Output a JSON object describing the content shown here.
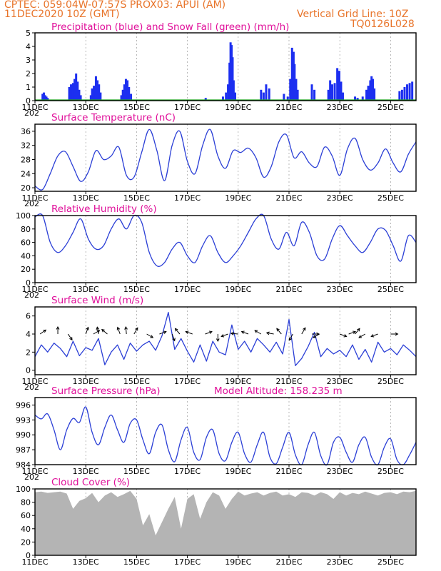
{
  "header": {
    "line1": "CPTEC:   059:04W-07:57S   PROX03: APUI (AM)",
    "line2_left": "11DEC2020 10Z (GMT)",
    "line2_right": "Vertical Grid Line: 10Z",
    "line3_right": "TQ0126L028"
  },
  "colors": {
    "header": "#e8742a",
    "title": "#e0109a",
    "precip": "#1c2ff0",
    "snow": "#1aa01a",
    "line": "#2b3fd6",
    "cloud": "#b4b4b4",
    "arrow": "#000000"
  },
  "x_axis": {
    "range": [
      0,
      15
    ],
    "ticks": [
      0,
      2,
      4,
      6,
      8,
      10,
      12,
      14
    ],
    "labels": [
      "11DEC",
      "13DEC",
      "15DEC",
      "17DEC",
      "19DEC",
      "21DEC",
      "23DEC",
      "25DEC"
    ],
    "year_stub": "202"
  },
  "chart_data": [
    {
      "id": "precip",
      "type": "bar",
      "title": "Precipitation (blue) and Snow Fall (green) (mm/h)",
      "ylim": [
        0,
        5
      ],
      "yticks": [
        0,
        1,
        2,
        3,
        4,
        5
      ],
      "ytick_labels": [
        "0",
        "1",
        "2",
        "3",
        "4",
        "5"
      ],
      "series": [
        {
          "name": "Precipitation",
          "color": "#1c2ff0",
          "bars": [
            [
              0.3,
              0.5
            ],
            [
              0.35,
              0.6
            ],
            [
              0.4,
              0.4
            ],
            [
              0.45,
              0.3
            ],
            [
              0.5,
              0.2
            ],
            [
              1.35,
              1.0
            ],
            [
              1.42,
              1.2
            ],
            [
              1.5,
              1.3
            ],
            [
              1.56,
              1.6
            ],
            [
              1.62,
              2.0
            ],
            [
              1.68,
              1.4
            ],
            [
              1.74,
              0.8
            ],
            [
              1.8,
              0.4
            ],
            [
              2.2,
              0.4
            ],
            [
              2.25,
              0.9
            ],
            [
              2.32,
              1.1
            ],
            [
              2.4,
              1.8
            ],
            [
              2.46,
              1.5
            ],
            [
              2.52,
              1.2
            ],
            [
              2.58,
              0.6
            ],
            [
              3.4,
              0.4
            ],
            [
              3.46,
              0.8
            ],
            [
              3.52,
              1.2
            ],
            [
              3.58,
              1.6
            ],
            [
              3.64,
              1.5
            ],
            [
              3.7,
              1.0
            ],
            [
              3.78,
              0.5
            ],
            [
              6.72,
              0.2
            ],
            [
              7.4,
              0.3
            ],
            [
              7.52,
              0.6
            ],
            [
              7.6,
              1.2
            ],
            [
              7.66,
              2.8
            ],
            [
              7.7,
              4.3
            ],
            [
              7.74,
              4.1
            ],
            [
              7.78,
              3.2
            ],
            [
              7.82,
              1.5
            ],
            [
              7.88,
              0.6
            ],
            [
              8.9,
              0.8
            ],
            [
              9.0,
              0.6
            ],
            [
              9.1,
              1.2
            ],
            [
              9.22,
              0.9
            ],
            [
              9.8,
              0.5
            ],
            [
              9.95,
              0.3
            ],
            [
              10.05,
              1.6
            ],
            [
              10.12,
              3.9
            ],
            [
              10.18,
              3.6
            ],
            [
              10.22,
              2.7
            ],
            [
              10.28,
              1.6
            ],
            [
              10.34,
              0.8
            ],
            [
              10.9,
              1.2
            ],
            [
              11.0,
              0.8
            ],
            [
              11.55,
              0.8
            ],
            [
              11.62,
              1.5
            ],
            [
              11.7,
              1.2
            ],
            [
              11.8,
              1.3
            ],
            [
              11.9,
              2.4
            ],
            [
              11.98,
              2.2
            ],
            [
              12.05,
              1.4
            ],
            [
              12.12,
              0.6
            ],
            [
              12.6,
              0.3
            ],
            [
              12.7,
              0.2
            ],
            [
              12.9,
              0.3
            ],
            [
              13.05,
              0.8
            ],
            [
              13.12,
              1.1
            ],
            [
              13.2,
              1.5
            ],
            [
              13.25,
              1.8
            ],
            [
              13.3,
              1.6
            ],
            [
              13.36,
              0.9
            ],
            [
              14.35,
              0.7
            ],
            [
              14.45,
              0.8
            ],
            [
              14.55,
              1.0
            ],
            [
              14.65,
              1.2
            ],
            [
              14.75,
              1.3
            ],
            [
              14.85,
              1.4
            ]
          ]
        },
        {
          "name": "Snow Fall",
          "color": "#1aa01a",
          "values": [
            0
          ]
        }
      ]
    },
    {
      "id": "temperature",
      "type": "line",
      "title": "Surface Temperature (nC)",
      "ylim": [
        19,
        38
      ],
      "yticks": [
        20,
        24,
        28,
        32,
        36
      ],
      "ytick_labels": [
        "20",
        "24",
        "28",
        "32",
        "36"
      ],
      "x": [
        0,
        0.3,
        0.6,
        0.9,
        1.2,
        1.5,
        1.8,
        2.1,
        2.4,
        2.7,
        3.0,
        3.3,
        3.6,
        3.9,
        4.2,
        4.5,
        4.8,
        5.1,
        5.4,
        5.7,
        6.0,
        6.3,
        6.6,
        6.9,
        7.2,
        7.5,
        7.8,
        8.1,
        8.4,
        8.7,
        9.0,
        9.3,
        9.6,
        9.9,
        10.2,
        10.5,
        10.8,
        11.1,
        11.4,
        11.7,
        12.0,
        12.3,
        12.6,
        12.9,
        13.2,
        13.5,
        13.8,
        14.1,
        14.4,
        14.7,
        15.0
      ],
      "values": [
        20.5,
        19.5,
        24,
        29,
        30.2,
        26,
        21.8,
        24.5,
        30.5,
        28,
        29,
        31.5,
        23.5,
        23,
        30,
        36.5,
        30.5,
        22,
        32,
        36,
        27.5,
        24,
        32,
        36.5,
        29,
        25.5,
        30.5,
        30,
        31.2,
        28.5,
        23,
        26,
        33,
        35,
        28.5,
        30.2,
        27,
        26,
        31.5,
        29,
        23.5,
        31,
        34,
        28,
        25,
        27,
        31,
        27,
        24.5,
        29.5,
        33
      ],
      "smooth": true
    },
    {
      "id": "humidity",
      "type": "line",
      "title": "Relative Humidity (%)",
      "ylim": [
        0,
        100
      ],
      "yticks": [
        0,
        20,
        40,
        60,
        80,
        100
      ],
      "ytick_labels": [
        "0",
        "20",
        "40",
        "60",
        "80",
        "100"
      ],
      "x": [
        0,
        0.3,
        0.6,
        0.9,
        1.2,
        1.5,
        1.8,
        2.1,
        2.4,
        2.7,
        3.0,
        3.3,
        3.6,
        3.9,
        4.2,
        4.5,
        4.8,
        5.1,
        5.4,
        5.7,
        6.0,
        6.3,
        6.6,
        6.9,
        7.2,
        7.5,
        7.8,
        8.1,
        8.4,
        8.7,
        9.0,
        9.3,
        9.6,
        9.9,
        10.2,
        10.5,
        10.8,
        11.1,
        11.4,
        11.7,
        12.0,
        12.3,
        12.6,
        12.9,
        13.2,
        13.5,
        13.8,
        14.1,
        14.4,
        14.7,
        15.0
      ],
      "values": [
        98,
        100,
        60,
        45,
        55,
        75,
        95,
        65,
        50,
        55,
        80,
        95,
        80,
        100,
        90,
        45,
        25,
        30,
        50,
        60,
        40,
        30,
        55,
        70,
        45,
        30,
        40,
        55,
        75,
        95,
        100,
        65,
        50,
        75,
        55,
        90,
        75,
        40,
        35,
        65,
        85,
        70,
        55,
        45,
        60,
        80,
        78,
        55,
        32,
        70,
        60
      ],
      "smooth": true
    },
    {
      "id": "wind",
      "type": "line",
      "title": "Surface Wind (m/s)",
      "ylim": [
        -0.5,
        7
      ],
      "yticks": [
        0,
        2,
        4,
        6
      ],
      "ytick_labels": [
        "0",
        "2",
        "4",
        "6"
      ],
      "x": [
        0,
        0.25,
        0.5,
        0.75,
        1.0,
        1.25,
        1.5,
        1.75,
        2.0,
        2.25,
        2.5,
        2.75,
        3.0,
        3.25,
        3.5,
        3.75,
        4.0,
        4.25,
        4.5,
        4.75,
        5.0,
        5.25,
        5.5,
        5.75,
        6.0,
        6.25,
        6.5,
        6.75,
        7.0,
        7.25,
        7.5,
        7.75,
        8.0,
        8.25,
        8.5,
        8.75,
        9.0,
        9.25,
        9.5,
        9.75,
        10.0,
        10.25,
        10.5,
        10.75,
        11.0,
        11.25,
        11.5,
        11.75,
        12.0,
        12.25,
        12.5,
        12.75,
        13.0,
        13.25,
        13.5,
        13.75,
        14.0,
        14.25,
        14.5,
        14.75,
        15.0
      ],
      "values": [
        1.5,
        2.8,
        2.0,
        3.0,
        2.4,
        1.5,
        3.2,
        1.6,
        2.5,
        2.2,
        3.5,
        0.6,
        2.0,
        2.8,
        1.2,
        3.0,
        2.1,
        2.8,
        3.2,
        2.2,
        3.8,
        6.4,
        2.3,
        3.5,
        2.1,
        0.9,
        2.8,
        1.0,
        3.2,
        2.0,
        1.7,
        5.0,
        2.3,
        3.2,
        2.0,
        3.5,
        2.8,
        2.0,
        3.1,
        1.8,
        5.6,
        0.5,
        1.3,
        2.6,
        4.2,
        1.5,
        2.4,
        1.8,
        2.2,
        1.5,
        2.8,
        1.2,
        2.3,
        0.9,
        3.1,
        2.0,
        2.4,
        1.7,
        2.8,
        2.2,
        1.5
      ],
      "smooth": false,
      "arrows": [
        [
          0.2,
          -35
        ],
        [
          0.9,
          -90
        ],
        [
          1.3,
          55
        ],
        [
          2.0,
          -70
        ],
        [
          2.3,
          -30
        ],
        [
          2.5,
          -100
        ],
        [
          2.85,
          -140
        ],
        [
          3.35,
          -110
        ],
        [
          3.6,
          -95
        ],
        [
          3.9,
          -60
        ],
        [
          4.4,
          30
        ],
        [
          4.9,
          -20
        ],
        [
          5.4,
          70
        ],
        [
          5.7,
          -130
        ],
        [
          6.2,
          200
        ],
        [
          6.7,
          -20
        ],
        [
          7.2,
          90
        ],
        [
          7.6,
          160
        ],
        [
          8.0,
          185
        ],
        [
          8.4,
          200
        ],
        [
          8.9,
          210
        ],
        [
          9.4,
          190
        ],
        [
          9.7,
          230
        ],
        [
          10.15,
          120
        ],
        [
          10.5,
          -60
        ],
        [
          10.9,
          0
        ],
        [
          11.2,
          150
        ],
        [
          12.0,
          20
        ],
        [
          12.35,
          -20
        ],
        [
          12.6,
          -50
        ],
        [
          13.0,
          150
        ],
        [
          13.5,
          160
        ],
        [
          14.0,
          0
        ]
      ]
    },
    {
      "id": "pressure",
      "type": "line",
      "title": "Surface Pressure (hPa)",
      "annotation": "Model Altitude: 158.235 m",
      "ylim": [
        984,
        997.5
      ],
      "yticks": [
        984,
        987,
        990,
        993,
        996
      ],
      "ytick_labels": [
        "984",
        "987",
        "990",
        "993",
        "996"
      ],
      "x": [
        0,
        0.25,
        0.5,
        0.75,
        1.0,
        1.25,
        1.5,
        1.75,
        2.0,
        2.25,
        2.5,
        2.75,
        3.0,
        3.25,
        3.5,
        3.75,
        4.0,
        4.25,
        4.5,
        4.75,
        5.0,
        5.25,
        5.5,
        5.75,
        6.0,
        6.25,
        6.5,
        6.75,
        7.0,
        7.25,
        7.5,
        7.75,
        8.0,
        8.25,
        8.5,
        8.75,
        9.0,
        9.25,
        9.5,
        9.75,
        10.0,
        10.25,
        10.5,
        10.75,
        11.0,
        11.25,
        11.5,
        11.75,
        12.0,
        12.25,
        12.5,
        12.75,
        13.0,
        13.25,
        13.5,
        13.75,
        14.0,
        14.25,
        14.5,
        14.75,
        15.0
      ],
      "values": [
        994.0,
        993.2,
        994.2,
        991.0,
        987.0,
        991.0,
        993.3,
        992.5,
        995.6,
        990.5,
        988.0,
        991.5,
        994.0,
        991.0,
        988.5,
        992.3,
        993.0,
        989.0,
        986.2,
        990.5,
        992.0,
        987.0,
        984.6,
        989.0,
        991.5,
        986.5,
        985.0,
        989.5,
        991.0,
        986.2,
        984.8,
        988.5,
        990.5,
        986.2,
        984.5,
        988.0,
        990.5,
        985.5,
        984.2,
        987.5,
        990.5,
        986.0,
        984.0,
        988.0,
        990.5,
        985.8,
        984.0,
        988.5,
        989.5,
        986.5,
        984.5,
        988.0,
        989.5,
        985.5,
        984.0,
        987.5,
        989.2,
        985.0,
        984.0,
        986.0,
        988.5
      ],
      "smooth": true
    },
    {
      "id": "cloud",
      "type": "area",
      "title": "Cloud Cover (%)",
      "ylim": [
        0,
        100
      ],
      "yticks": [
        0,
        20,
        40,
        60,
        80,
        100
      ],
      "ytick_labels": [
        "0",
        "20",
        "40",
        "60",
        "80",
        "100"
      ],
      "x": [
        0,
        0.25,
        0.5,
        0.75,
        1.0,
        1.25,
        1.5,
        1.75,
        2.0,
        2.25,
        2.5,
        2.75,
        3.0,
        3.25,
        3.5,
        3.75,
        4.0,
        4.25,
        4.5,
        4.75,
        5.0,
        5.25,
        5.5,
        5.75,
        6.0,
        6.25,
        6.5,
        6.75,
        7.0,
        7.25,
        7.5,
        7.75,
        8.0,
        8.25,
        8.5,
        8.75,
        9.0,
        9.25,
        9.5,
        9.75,
        10.0,
        10.25,
        10.5,
        10.75,
        11.0,
        11.25,
        11.5,
        11.75,
        12.0,
        12.25,
        12.5,
        12.75,
        13.0,
        13.25,
        13.5,
        13.75,
        14.0,
        14.25,
        14.5,
        14.75,
        15.0
      ],
      "values": [
        95,
        96,
        94,
        95,
        96,
        93,
        70,
        82,
        86,
        94,
        80,
        90,
        95,
        88,
        92,
        97,
        85,
        45,
        62,
        30,
        50,
        70,
        88,
        40,
        85,
        92,
        55,
        80,
        95,
        90,
        70,
        85,
        96,
        90,
        93,
        95,
        90,
        94,
        96,
        90,
        92,
        88,
        95,
        94,
        90,
        95,
        92,
        85,
        95,
        90,
        94,
        92,
        96,
        93,
        90,
        94,
        95,
        92,
        96,
        95,
        97
      ],
      "smooth": false
    }
  ]
}
